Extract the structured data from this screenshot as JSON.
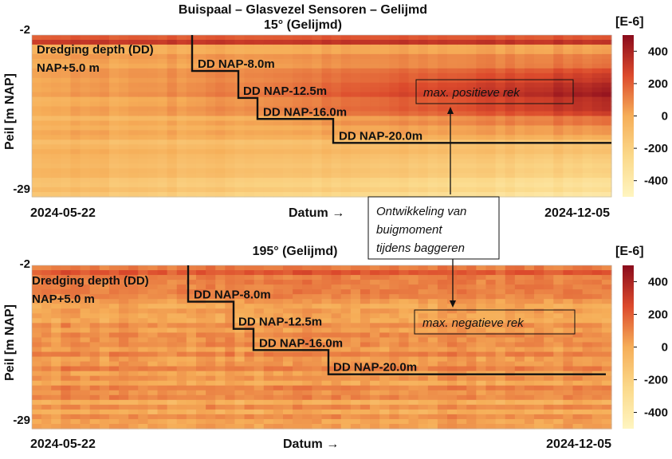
{
  "figure_title": "Buispaal – Glasvezel Sensoren – Gelijmd",
  "annotation_center": [
    "Ontwikkeling van",
    "buigmoment",
    "tijdens baggeren"
  ],
  "colors": {
    "low": "#fff5c0",
    "mid": "#f6ae58",
    "high": "#8a0b1c",
    "step_line": "#111111"
  },
  "chart_data": [
    {
      "type": "heatmap",
      "title": "15° (Gelijmd)",
      "ylabel": "Peil [m NAP]",
      "xlabel": "Datum →",
      "x_tick_labels": [
        "2024-05-22",
        "2024-12-05"
      ],
      "y_tick_labels": [
        "-2",
        "-29"
      ],
      "ylim": [
        -2,
        -29
      ],
      "xlim": [
        "2024-05-22",
        "2024-12-05"
      ],
      "colorbar": {
        "unit": "[E-6]",
        "ticks": [
          400,
          200,
          0,
          -200,
          -400
        ],
        "range": [
          -500,
          500
        ]
      },
      "dredging_label": [
        "Dredging depth (DD)",
        "NAP+5.0 m"
      ],
      "dredging_steps": [
        {
          "label": "DD NAP-8.0m",
          "depth": -8.0
        },
        {
          "label": "DD NAP-12.5m",
          "depth": -12.5
        },
        {
          "label": "DD NAP-16.0m",
          "depth": -16.0
        },
        {
          "label": "DD NAP-20.0m",
          "depth": -20.0
        }
      ],
      "callout": "max. positieve rek"
    },
    {
      "type": "heatmap",
      "title": "195° (Gelijmd)",
      "ylabel": "Peil [m NAP]",
      "xlabel": "Datum →",
      "x_tick_labels": [
        "2024-05-22",
        "2024-12-05"
      ],
      "y_tick_labels": [
        "-2",
        "-29"
      ],
      "ylim": [
        -2,
        -29
      ],
      "xlim": [
        "2024-05-22",
        "2024-12-05"
      ],
      "colorbar": {
        "unit": "[E-6]",
        "ticks": [
          400,
          200,
          0,
          -200,
          -400
        ],
        "range": [
          -500,
          500
        ]
      },
      "dredging_label": [
        "Dredging depth (DD)",
        "NAP+5.0 m"
      ],
      "dredging_steps": [
        {
          "label": "DD NAP-8.0m",
          "depth": -8.0
        },
        {
          "label": "DD NAP-12.5m",
          "depth": -12.5
        },
        {
          "label": "DD NAP-16.0m",
          "depth": -16.0
        },
        {
          "label": "DD NAP-20.0m",
          "depth": -20.0
        }
      ],
      "callout": "max. negatieve rek"
    }
  ]
}
